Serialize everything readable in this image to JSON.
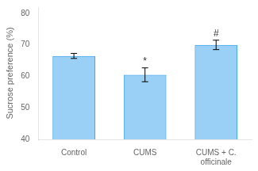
{
  "chart_data": {
    "type": "bar",
    "categories": [
      "Control",
      "CUMS",
      "CUMS + C. officinale"
    ],
    "values": [
      66.5,
      60.5,
      70.0
    ],
    "errors": [
      0.8,
      2.2,
      1.5
    ],
    "ylabel": "Sucrose preference (%)",
    "ylim": [
      40,
      82
    ],
    "yticks": [
      40,
      50,
      60,
      70,
      80
    ],
    "grid": false,
    "annotations": [
      {
        "category": "CUMS",
        "text": "*"
      },
      {
        "category": "CUMS + C. officinale",
        "text": "#"
      }
    ]
  }
}
